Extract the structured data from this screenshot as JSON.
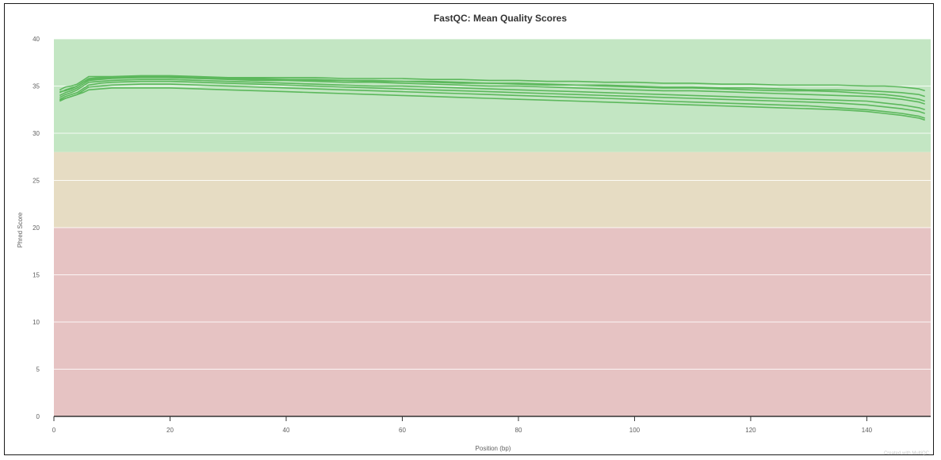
{
  "chart_data": {
    "type": "line",
    "title": "FastQC: Mean Quality Scores",
    "xlabel": "Position (bp)",
    "ylabel": "Phred Score",
    "xlim": [
      0,
      151
    ],
    "ylim": [
      0,
      40
    ],
    "x_ticks": [
      0,
      20,
      40,
      60,
      80,
      100,
      120,
      140
    ],
    "y_ticks": [
      0,
      5,
      10,
      15,
      20,
      25,
      30,
      35,
      40
    ],
    "grid": true,
    "legend": "none",
    "credit": "Created with MultiQC",
    "bands": [
      {
        "from": 28,
        "to": 40,
        "color": "#c3e6c3"
      },
      {
        "from": 20,
        "to": 28,
        "color": "#e6dcc3"
      },
      {
        "from": 0,
        "to": 20,
        "color": "#e6c3c3"
      }
    ],
    "line_color": "#5cb85c",
    "x": [
      1,
      2,
      3,
      4,
      5,
      6,
      8,
      10,
      15,
      20,
      25,
      30,
      35,
      40,
      45,
      50,
      55,
      60,
      65,
      70,
      75,
      80,
      85,
      90,
      95,
      100,
      105,
      110,
      115,
      120,
      125,
      130,
      135,
      140,
      143,
      146,
      149,
      150
    ],
    "series": [
      {
        "values": [
          34.6,
          34.9,
          35.0,
          35.2,
          35.6,
          36.0,
          36.0,
          36.0,
          36.1,
          36.1,
          36.0,
          35.9,
          35.9,
          35.9,
          35.9,
          35.8,
          35.8,
          35.8,
          35.7,
          35.7,
          35.6,
          35.6,
          35.5,
          35.5,
          35.4,
          35.4,
          35.3,
          35.3,
          35.2,
          35.2,
          35.1,
          35.1,
          35.1,
          35.0,
          35.0,
          34.9,
          34.7,
          34.5
        ]
      },
      {
        "values": [
          34.3,
          34.6,
          34.8,
          35.0,
          35.4,
          35.8,
          35.9,
          35.9,
          36.0,
          36.0,
          35.9,
          35.8,
          35.8,
          35.7,
          35.7,
          35.6,
          35.6,
          35.5,
          35.5,
          35.4,
          35.3,
          35.3,
          35.2,
          35.1,
          35.1,
          35.0,
          34.9,
          34.9,
          34.8,
          34.8,
          34.7,
          34.6,
          34.6,
          34.5,
          34.4,
          34.3,
          34.1,
          33.9
        ]
      },
      {
        "values": [
          34.0,
          34.3,
          34.5,
          34.8,
          35.2,
          35.6,
          35.7,
          35.8,
          35.9,
          35.9,
          35.8,
          35.7,
          35.6,
          35.6,
          35.5,
          35.4,
          35.4,
          35.3,
          35.2,
          35.1,
          35.0,
          35.0,
          34.9,
          34.8,
          34.7,
          34.6,
          34.5,
          34.5,
          34.4,
          34.3,
          34.2,
          34.1,
          34.0,
          33.9,
          33.8,
          33.6,
          33.3,
          33.1
        ]
      },
      {
        "values": [
          33.8,
          34.1,
          34.3,
          34.6,
          35.0,
          35.4,
          35.5,
          35.6,
          35.7,
          35.7,
          35.6,
          35.5,
          35.4,
          35.3,
          35.2,
          35.1,
          35.0,
          35.0,
          34.9,
          34.8,
          34.7,
          34.6,
          34.5,
          34.4,
          34.3,
          34.2,
          34.1,
          34.0,
          33.9,
          33.8,
          33.7,
          33.6,
          33.5,
          33.4,
          33.2,
          33.0,
          32.7,
          32.5
        ]
      },
      {
        "values": [
          33.6,
          33.9,
          34.1,
          34.3,
          34.7,
          35.1,
          35.3,
          35.4,
          35.5,
          35.5,
          35.4,
          35.3,
          35.2,
          35.1,
          35.0,
          34.9,
          34.8,
          34.7,
          34.6,
          34.5,
          34.4,
          34.3,
          34.2,
          34.1,
          34.0,
          33.9,
          33.8,
          33.7,
          33.6,
          33.5,
          33.4,
          33.3,
          33.2,
          33.0,
          32.8,
          32.6,
          32.3,
          32.1
        ]
      },
      {
        "values": [
          33.4,
          33.7,
          33.9,
          34.1,
          34.5,
          34.9,
          35.0,
          35.1,
          35.2,
          35.2,
          35.1,
          35.0,
          34.9,
          34.8,
          34.7,
          34.6,
          34.5,
          34.4,
          34.3,
          34.2,
          34.1,
          34.0,
          33.9,
          33.8,
          33.7,
          33.6,
          33.4,
          33.3,
          33.2,
          33.1,
          33.0,
          32.9,
          32.7,
          32.5,
          32.3,
          32.1,
          31.8,
          31.6
        ]
      },
      {
        "values": [
          33.5,
          33.7,
          33.9,
          34.1,
          34.3,
          34.6,
          34.7,
          34.8,
          34.8,
          34.8,
          34.7,
          34.6,
          34.5,
          34.4,
          34.3,
          34.2,
          34.1,
          34.0,
          33.9,
          33.8,
          33.7,
          33.6,
          33.5,
          33.4,
          33.3,
          33.2,
          33.1,
          33.0,
          32.9,
          32.8,
          32.7,
          32.6,
          32.5,
          32.3,
          32.1,
          31.9,
          31.6,
          31.4
        ]
      },
      {
        "values": [
          34.4,
          34.5,
          34.7,
          35.0,
          35.4,
          35.7,
          35.8,
          35.9,
          36.0,
          35.9,
          35.8,
          35.8,
          35.7,
          35.7,
          35.6,
          35.6,
          35.5,
          35.5,
          35.4,
          35.3,
          35.3,
          35.2,
          35.1,
          35.1,
          35.0,
          34.9,
          34.8,
          34.8,
          34.7,
          34.6,
          34.5,
          34.5,
          34.4,
          34.2,
          34.1,
          33.9,
          33.6,
          33.4
        ]
      }
    ]
  }
}
